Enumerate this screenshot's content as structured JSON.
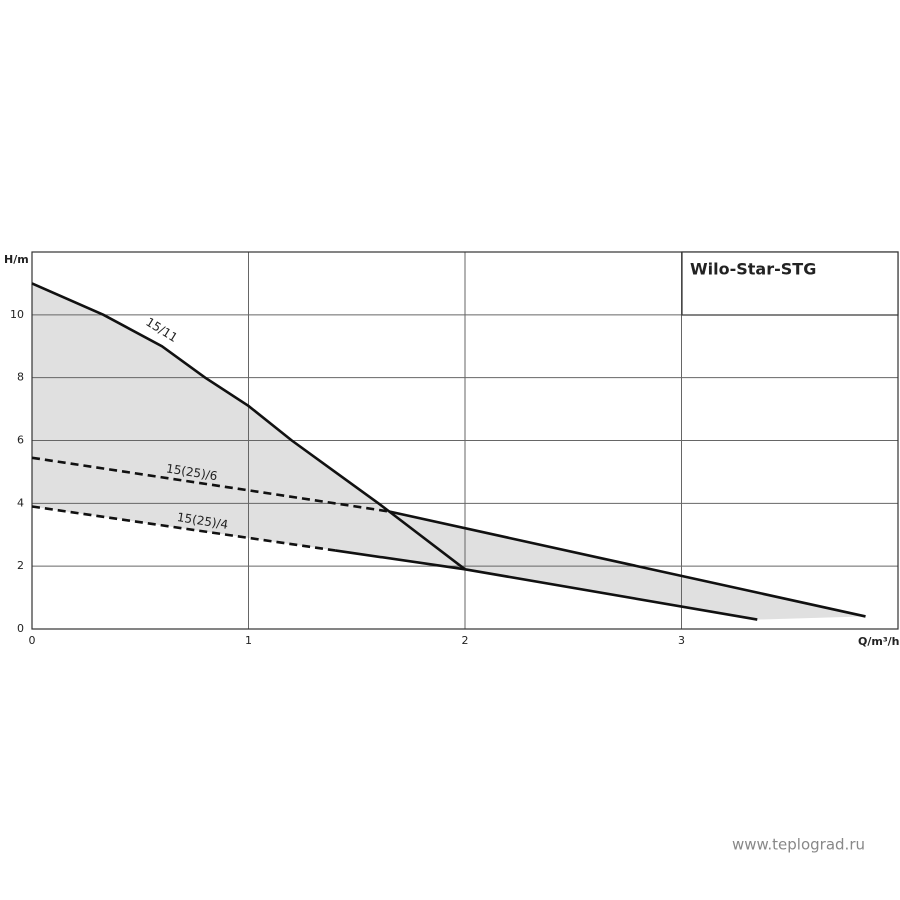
{
  "chart_data": {
    "type": "line",
    "title": "Wilo-Star-STG",
    "x_label": "Q/m³/h",
    "y_label": "H/m",
    "xlim": [
      0,
      4
    ],
    "ylim": [
      0,
      12
    ],
    "xticks": [
      0,
      1,
      2,
      3
    ],
    "yticks": [
      0,
      2,
      4,
      6,
      8,
      10
    ],
    "grid": true,
    "fill_color": "#e0e0e0",
    "series": [
      {
        "name": "15/11",
        "color": "#111111",
        "x": [
          0,
          0.33,
          0.6,
          0.8,
          1,
          1.2,
          1.4,
          1.6,
          1.65,
          2
        ],
        "values": [
          11,
          10,
          9,
          8,
          7.1,
          6,
          5,
          4,
          3.74,
          1.9
        ],
        "segment_styles": [
          "solid",
          "solid",
          "solid",
          "solid",
          "solid",
          "solid",
          "solid",
          "solid",
          "solid"
        ]
      },
      {
        "name": "15(25)/6",
        "color": "#111111",
        "x": [
          0,
          1.65,
          3.85
        ],
        "values": [
          5.45,
          3.74,
          0.4
        ],
        "segment_styles": [
          "dashed",
          "solid"
        ]
      },
      {
        "name": "15(25)/4",
        "color": "#111111",
        "x": [
          0,
          1.4,
          2,
          3.35
        ],
        "values": [
          3.9,
          2.5,
          1.9,
          0.3
        ],
        "segment_styles": [
          "dashed",
          "solid",
          "solid"
        ]
      }
    ]
  },
  "watermark": "www.teplograd.ru"
}
